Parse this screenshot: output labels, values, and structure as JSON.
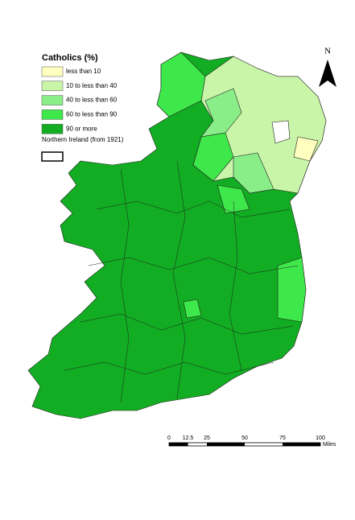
{
  "legend": {
    "title": "Catholics (%)",
    "items": [
      {
        "label": "less than 10",
        "color": "#ffffc0"
      },
      {
        "label": "10 to less than 40",
        "color": "#c8f5a8"
      },
      {
        "label": "40 to less than 60",
        "color": "#8aee88"
      },
      {
        "label": "60 to less than 90",
        "color": "#3ee84a"
      },
      {
        "label": "90 or more",
        "color": "#12ad22"
      }
    ],
    "boundary_label": "Northern Ireland (from 1921)"
  },
  "north_arrow": {
    "label": "N"
  },
  "scale_bar": {
    "ticks": [
      "0",
      "12.5",
      "25",
      "50",
      "75",
      "100"
    ],
    "unit": "Miles"
  }
}
